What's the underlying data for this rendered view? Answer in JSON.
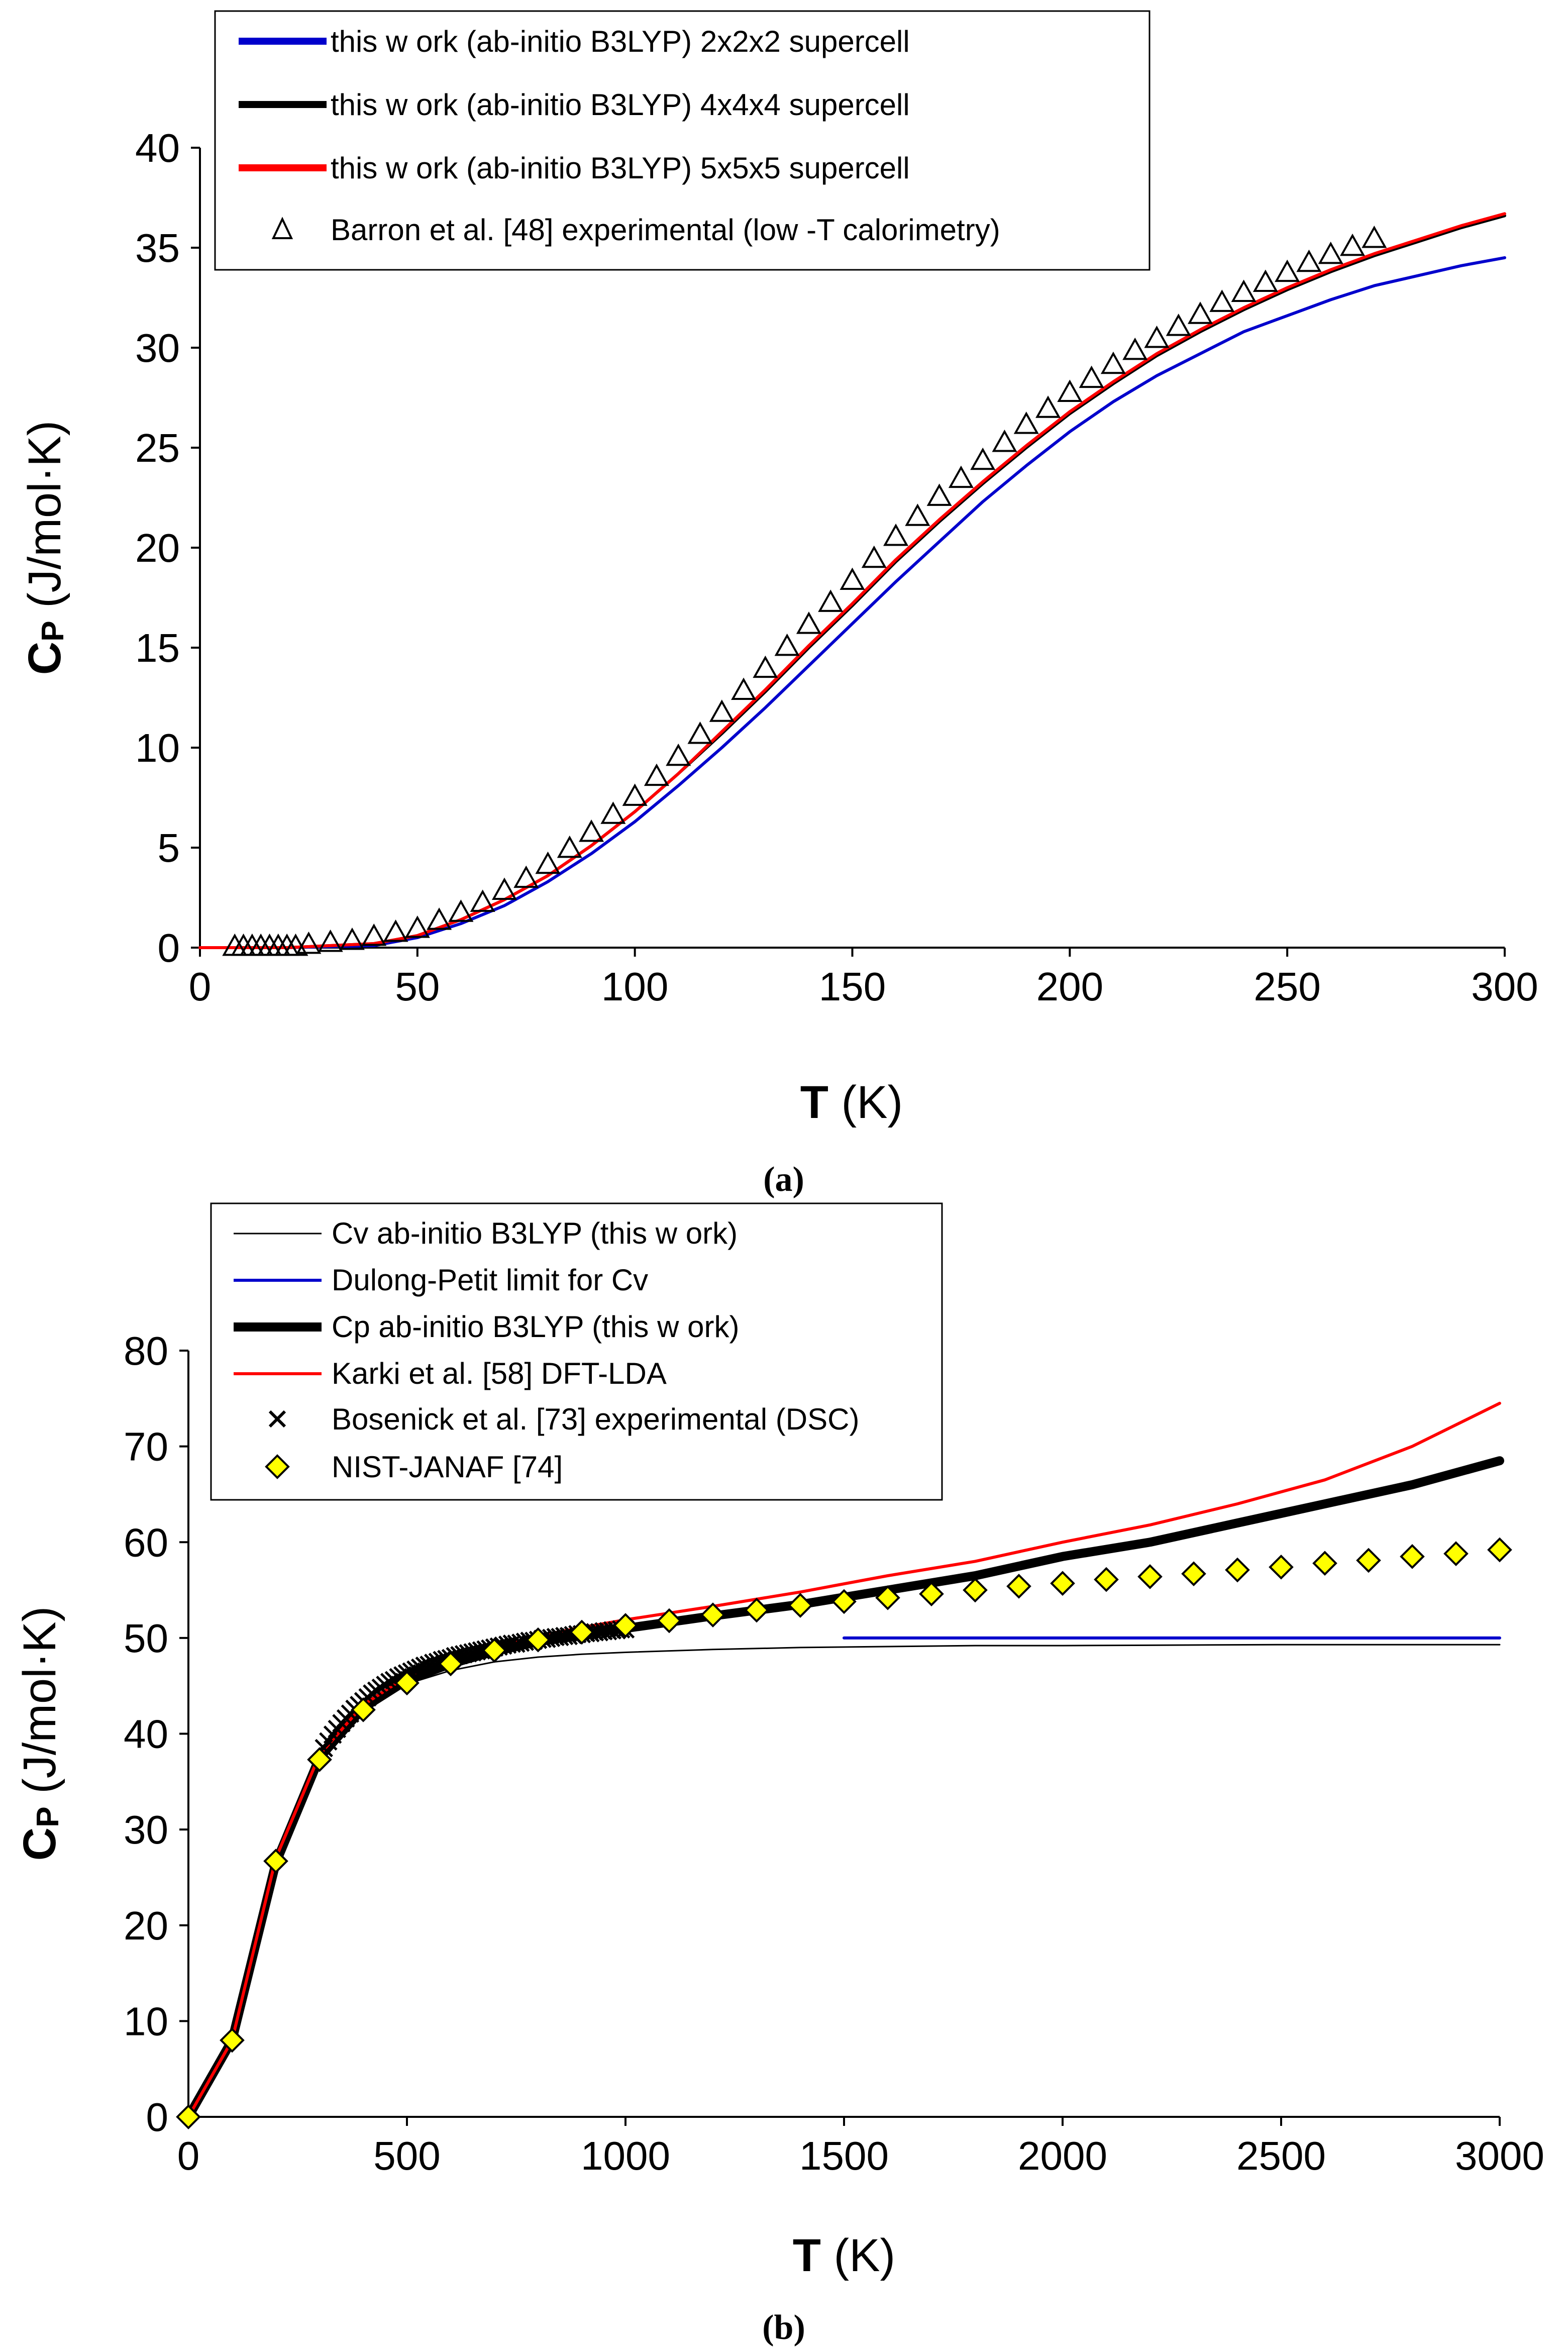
{
  "colors": {
    "blue": "#0000cc",
    "black": "#000000",
    "red": "#ff0000",
    "diamond_fill": "#ffff00"
  },
  "chart_data": [
    {
      "type": "line",
      "panel_label": "(a)",
      "xlabel_bold": "T",
      "xlabel_rest": " (K)",
      "ylabel_bold": "C",
      "ylabel_sub": "P",
      "ylabel_rest": " (J/mol·K)",
      "xlim": [
        0,
        300
      ],
      "ylim": [
        0,
        40
      ],
      "xticks": [
        0,
        50,
        100,
        150,
        200,
        250,
        300
      ],
      "yticks": [
        0,
        5,
        10,
        15,
        20,
        25,
        30,
        35,
        40
      ],
      "series": [
        {
          "name": "this w ork (ab-initio B3LYP) 2x2x2 supercell",
          "kind": "line",
          "color": "#0000cc",
          "width": 6,
          "x": [
            0,
            20,
            40,
            50,
            60,
            70,
            80,
            90,
            100,
            110,
            120,
            130,
            140,
            150,
            160,
            170,
            180,
            190,
            200,
            210,
            220,
            230,
            240,
            250,
            260,
            270,
            280,
            290,
            300
          ],
          "y": [
            0,
            0,
            0.1,
            0.5,
            1.2,
            2.1,
            3.3,
            4.7,
            6.3,
            8.1,
            10.0,
            12.0,
            14.1,
            16.2,
            18.3,
            20.3,
            22.3,
            24.1,
            25.8,
            27.3,
            28.6,
            29.7,
            30.8,
            31.6,
            32.4,
            33.1,
            33.6,
            34.1,
            34.5
          ]
        },
        {
          "name": "this w ork (ab-initio B3LYP) 4x4x4 supercell",
          "kind": "line",
          "color": "#000000",
          "width": 6,
          "x": [
            0,
            20,
            40,
            50,
            60,
            70,
            80,
            90,
            100,
            110,
            120,
            130,
            140,
            150,
            160,
            170,
            180,
            190,
            200,
            210,
            220,
            230,
            240,
            250,
            260,
            270,
            280,
            290,
            300
          ],
          "y": [
            0,
            0,
            0.2,
            0.6,
            1.4,
            2.4,
            3.6,
            5.1,
            6.8,
            8.7,
            10.7,
            12.8,
            15.0,
            17.1,
            19.3,
            21.3,
            23.2,
            25.0,
            26.7,
            28.2,
            29.6,
            30.8,
            31.9,
            32.9,
            33.8,
            34.6,
            35.3,
            36.0,
            36.6
          ]
        },
        {
          "name": "this w ork (ab-initio B3LYP) 5x5x5 supercell",
          "kind": "line",
          "color": "#ff0000",
          "width": 6,
          "x": [
            0,
            20,
            40,
            50,
            60,
            70,
            80,
            90,
            100,
            110,
            120,
            130,
            140,
            150,
            160,
            170,
            180,
            190,
            200,
            210,
            220,
            230,
            240,
            250,
            260,
            270,
            280,
            290,
            300
          ],
          "y": [
            0,
            0,
            0.2,
            0.6,
            1.4,
            2.4,
            3.6,
            5.1,
            6.8,
            8.7,
            10.8,
            12.9,
            15.1,
            17.2,
            19.4,
            21.4,
            23.3,
            25.1,
            26.8,
            28.3,
            29.7,
            30.9,
            32.0,
            33.0,
            33.9,
            34.7,
            35.4,
            36.1,
            36.7
          ]
        },
        {
          "name": "Barron et al. [48] experimental (low -T calorimetry)",
          "kind": "triangle",
          "color": "#000000",
          "x": [
            8,
            10,
            12,
            14,
            16,
            18,
            20,
            22,
            25,
            30,
            35,
            40,
            45,
            50,
            55,
            60,
            65,
            70,
            75,
            80,
            85,
            90,
            95,
            100,
            105,
            110,
            115,
            120,
            125,
            130,
            135,
            140,
            145,
            150,
            155,
            160,
            165,
            170,
            175,
            180,
            185,
            190,
            195,
            200,
            205,
            210,
            215,
            220,
            225,
            230,
            235,
            240,
            245,
            250,
            255,
            260,
            265,
            270
          ],
          "y": [
            0,
            0,
            0,
            0,
            0,
            0,
            0,
            0,
            0.1,
            0.2,
            0.3,
            0.5,
            0.7,
            0.9,
            1.3,
            1.7,
            2.2,
            2.8,
            3.4,
            4.1,
            4.9,
            5.7,
            6.6,
            7.5,
            8.5,
            9.5,
            10.6,
            11.7,
            12.8,
            13.9,
            15.0,
            16.1,
            17.2,
            18.3,
            19.4,
            20.5,
            21.5,
            22.5,
            23.4,
            24.3,
            25.2,
            26.1,
            26.9,
            27.7,
            28.4,
            29.1,
            29.8,
            30.4,
            31.0,
            31.6,
            32.2,
            32.7,
            33.2,
            33.7,
            34.2,
            34.6,
            35.0,
            35.4
          ]
        }
      ]
    },
    {
      "type": "line",
      "panel_label": "(b)",
      "xlabel_bold": "T",
      "xlabel_rest": " (K)",
      "ylabel_bold": "C",
      "ylabel_sub": "P",
      "ylabel_rest": " (J/mol·K)",
      "xlim": [
        0,
        3000
      ],
      "ylim": [
        0,
        80
      ],
      "xticks": [
        0,
        500,
        1000,
        1500,
        2000,
        2500,
        3000
      ],
      "yticks": [
        0,
        10,
        20,
        30,
        40,
        50,
        60,
        70,
        80
      ],
      "series": [
        {
          "name": "Cv ab-initio B3LYP (this w ork)",
          "kind": "line",
          "color": "#000000",
          "width": 3,
          "x": [
            0,
            100,
            200,
            300,
            400,
            500,
            600,
            700,
            800,
            900,
            1000,
            1200,
            1400,
            1600,
            1800,
            2000,
            2500,
            3000
          ],
          "y": [
            0,
            8,
            26.5,
            37.5,
            42.5,
            45.2,
            46.6,
            47.5,
            48.0,
            48.3,
            48.5,
            48.8,
            49.0,
            49.1,
            49.2,
            49.2,
            49.3,
            49.3
          ]
        },
        {
          "name": "Dulong-Petit limit for Cv",
          "kind": "line",
          "color": "#0000cc",
          "width": 6,
          "x": [
            1500,
            3000
          ],
          "y": [
            50,
            50
          ]
        },
        {
          "name": "Cp ab-initio B3LYP (this w ork)",
          "kind": "line",
          "color": "#000000",
          "width": 18,
          "x": [
            0,
            100,
            200,
            300,
            400,
            500,
            600,
            700,
            800,
            900,
            1000,
            1200,
            1400,
            1600,
            1800,
            2000,
            2200,
            2400,
            2600,
            2800,
            3000
          ],
          "y": [
            0,
            8,
            26.5,
            37.5,
            42.7,
            45.6,
            47.3,
            48.6,
            49.6,
            50.4,
            51.0,
            52.3,
            53.5,
            55.0,
            56.5,
            58.5,
            60.0,
            62.0,
            64.0,
            66.0,
            68.5
          ]
        },
        {
          "name": "Karki et al. [58] DFT-LDA",
          "kind": "line",
          "color": "#ff0000",
          "width": 6,
          "x": [
            0,
            100,
            200,
            300,
            400,
            500,
            600,
            700,
            800,
            900,
            1000,
            1200,
            1400,
            1600,
            1800,
            2000,
            2200,
            2400,
            2600,
            2800,
            3000
          ],
          "y": [
            0,
            8,
            27,
            37.8,
            43,
            46,
            47.8,
            49.1,
            50.2,
            51.1,
            51.9,
            53.3,
            54.8,
            56.5,
            58.0,
            60.0,
            61.8,
            64.0,
            66.5,
            70.0,
            74.5
          ]
        },
        {
          "name": "Bosenick et al. [73] experimental (DSC)",
          "kind": "cross",
          "color": "#000000",
          "x": [
            310,
            320,
            330,
            340,
            350,
            360,
            370,
            380,
            390,
            400,
            410,
            420,
            430,
            440,
            450,
            460,
            470,
            480,
            490,
            500,
            510,
            520,
            530,
            540,
            550,
            560,
            570,
            580,
            590,
            600,
            610,
            620,
            630,
            640,
            650,
            660,
            670,
            680,
            690,
            700,
            710,
            720,
            730,
            740,
            750,
            760,
            770,
            780,
            790,
            800,
            810,
            820,
            830,
            840,
            850,
            860,
            870,
            880,
            890,
            900,
            910,
            920,
            930,
            940,
            950,
            960,
            970,
            980,
            990,
            1000
          ],
          "y": [
            38.5,
            39.2,
            39.9,
            40.5,
            41.1,
            41.6,
            42.1,
            42.6,
            43.0,
            43.4,
            43.8,
            44.2,
            44.5,
            44.8,
            45.1,
            45.4,
            45.6,
            45.9,
            46.1,
            46.3,
            46.5,
            46.7,
            46.9,
            47.1,
            47.2,
            47.4,
            47.5,
            47.7,
            47.8,
            47.9,
            48.1,
            48.2,
            48.3,
            48.4,
            48.5,
            48.6,
            48.7,
            48.8,
            48.9,
            49.0,
            49.1,
            49.2,
            49.3,
            49.4,
            49.4,
            49.5,
            49.6,
            49.7,
            49.7,
            49.8,
            49.9,
            49.9,
            50.0,
            50.1,
            50.1,
            50.2,
            50.2,
            50.3,
            50.4,
            50.4,
            50.5,
            50.5,
            50.6,
            50.6,
            50.7,
            50.7,
            50.8,
            50.8,
            50.9,
            50.9
          ]
        },
        {
          "name": "NIST-JANAF [74]",
          "kind": "diamond",
          "color": "#000000",
          "x": [
            0,
            100,
            200,
            300,
            400,
            500,
            600,
            700,
            800,
            900,
            1000,
            1100,
            1200,
            1300,
            1400,
            1500,
            1600,
            1700,
            1800,
            1900,
            2000,
            2100,
            2200,
            2300,
            2400,
            2500,
            2600,
            2700,
            2800,
            2900,
            3000
          ],
          "y": [
            0,
            8,
            26.7,
            37.3,
            42.5,
            45.3,
            47.3,
            48.7,
            49.8,
            50.6,
            51.3,
            51.8,
            52.4,
            52.9,
            53.4,
            53.8,
            54.2,
            54.6,
            55.0,
            55.4,
            55.7,
            56.1,
            56.4,
            56.7,
            57.1,
            57.4,
            57.8,
            58.1,
            58.5,
            58.8,
            59.2
          ]
        }
      ]
    }
  ]
}
